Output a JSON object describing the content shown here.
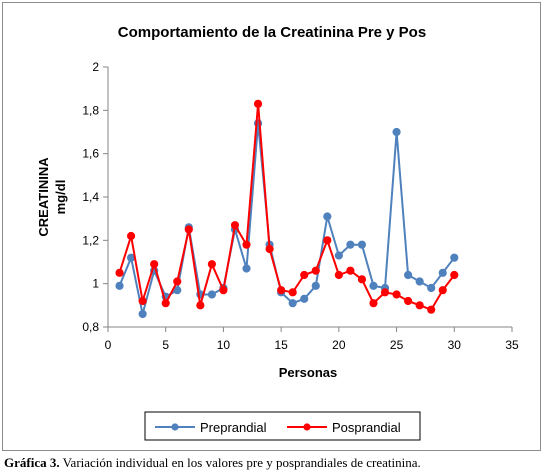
{
  "chart_data": {
    "type": "line",
    "title": "Comportamiento de la Creatinina Pre y Pos",
    "xlabel": "Personas",
    "ylabel_lines": [
      "CREATININA",
      "mg/dl"
    ],
    "xlim": [
      0,
      35
    ],
    "ylim": [
      0.8,
      2.0
    ],
    "xticks": [
      0,
      5,
      10,
      15,
      20,
      25,
      30,
      35
    ],
    "xtick_labels": [
      "0",
      "5",
      "10",
      "15",
      "20",
      "25",
      "30",
      "35"
    ],
    "yticks": [
      0.8,
      1.0,
      1.2,
      1.4,
      1.6,
      1.8,
      2.0
    ],
    "ytick_labels": [
      "0,8",
      "1",
      "1,2",
      "1,4",
      "1,6",
      "1,8",
      "2"
    ],
    "grid": false,
    "legend_position": "bottom",
    "x": [
      1,
      2,
      3,
      4,
      5,
      6,
      7,
      8,
      9,
      10,
      11,
      12,
      13,
      14,
      15,
      16,
      17,
      18,
      19,
      20,
      21,
      22,
      23,
      24,
      25,
      26,
      27,
      28,
      29,
      30
    ],
    "series": [
      {
        "name": "Preprandial",
        "color": "#4f81bd",
        "values": [
          0.99,
          1.12,
          0.86,
          1.06,
          0.94,
          0.97,
          1.26,
          0.95,
          0.95,
          0.98,
          1.25,
          1.07,
          1.74,
          1.18,
          0.96,
          0.91,
          0.93,
          0.99,
          1.31,
          1.13,
          1.18,
          1.18,
          0.99,
          0.98,
          1.7,
          1.04,
          1.01,
          0.98,
          1.05,
          1.12
        ]
      },
      {
        "name": "Posprandial",
        "color": "#ff0000",
        "values": [
          1.05,
          1.22,
          0.92,
          1.09,
          0.91,
          1.01,
          1.25,
          0.9,
          1.09,
          0.97,
          1.27,
          1.18,
          1.83,
          1.16,
          0.97,
          0.96,
          1.04,
          1.06,
          1.2,
          1.04,
          1.06,
          1.02,
          0.91,
          0.96,
          0.95,
          0.92,
          0.9,
          0.88,
          0.97,
          1.04
        ]
      }
    ]
  },
  "caption": {
    "label": "Gráfica 3.",
    "text": " Variación individual en los valores pre y posprandiales de creatinina."
  }
}
